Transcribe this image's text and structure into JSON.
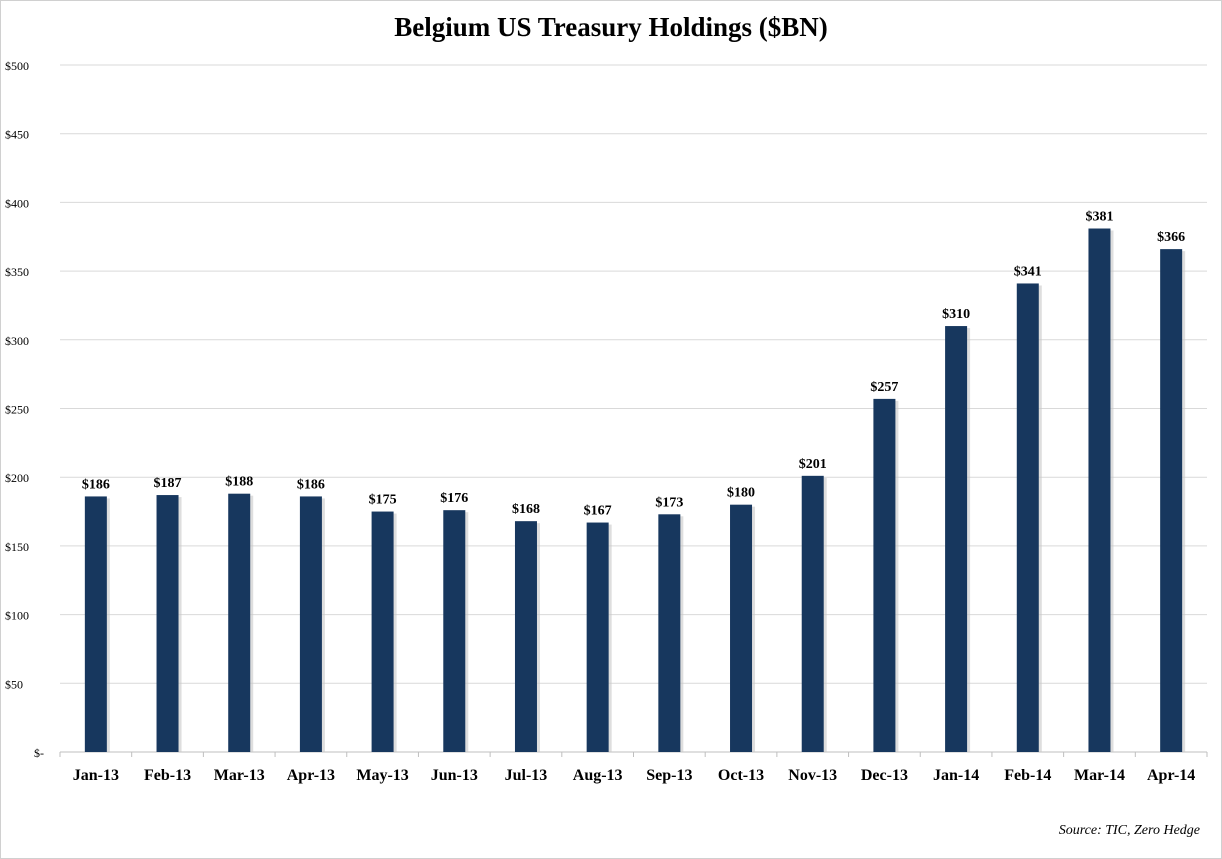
{
  "chart_data": {
    "type": "bar",
    "title": "Belgium US Treasury Holdings ($BN)",
    "source": "Source: TIC, Zero Hedge",
    "xlabel": "",
    "ylabel": "",
    "ylim": [
      0,
      500
    ],
    "yticks": [
      0,
      50,
      100,
      150,
      200,
      250,
      300,
      350,
      400,
      450,
      500
    ],
    "ytick_labels": [
      "$-",
      "$50",
      "$100",
      "$150",
      "$200",
      "$250",
      "$300",
      "$350",
      "$400",
      "$450",
      "$500"
    ],
    "grid": true,
    "categories": [
      "Jan-13",
      "Feb-13",
      "Mar-13",
      "Apr-13",
      "May-13",
      "Jun-13",
      "Jul-13",
      "Aug-13",
      "Sep-13",
      "Oct-13",
      "Nov-13",
      "Dec-13",
      "Jan-14",
      "Feb-14",
      "Mar-14",
      "Apr-14"
    ],
    "values": [
      186,
      187,
      188,
      186,
      175,
      176,
      168,
      167,
      173,
      180,
      201,
      257,
      310,
      341,
      381,
      366
    ],
    "data_labels": [
      "$186",
      "$187",
      "$188",
      "$186",
      "$175",
      "$176",
      "$168",
      "$167",
      "$173",
      "$180",
      "$201",
      "$257",
      "$310",
      "$341",
      "$381",
      "$366"
    ],
    "bar_color": "#17375e",
    "grid_color": "#d9d9d9"
  }
}
